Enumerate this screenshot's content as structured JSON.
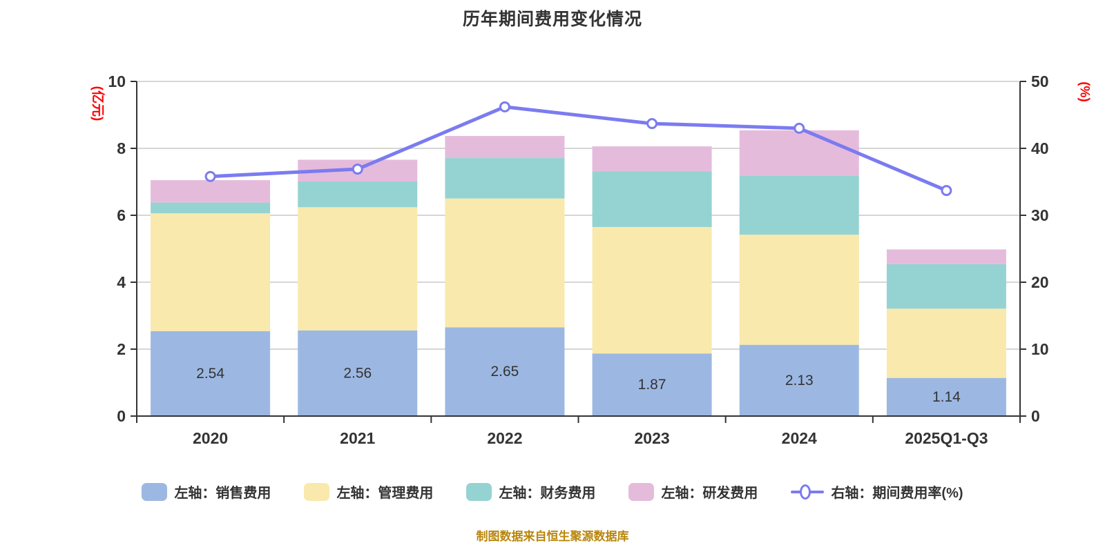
{
  "title": "历年期间费用变化情况",
  "source_note": "制图数据来自恒生聚源数据库",
  "colors": {
    "sales": "#9CB8E2",
    "management": "#F9E9AC",
    "finance": "#95D3D2",
    "rd": "#E5BBDC",
    "line": "#7B7BF0",
    "axis": "#333333",
    "grid": "#D6D6D6",
    "axis_name": "#FF0000",
    "text": "#333333",
    "title": "#333333",
    "source": "#B8860B",
    "marker_fill": "#FFFFFF"
  },
  "chart_data": {
    "type": "bar",
    "stacked": true,
    "grid": true,
    "legend_position": "bottom",
    "title": "历年期间费用变化情况",
    "categories": [
      "2020",
      "2021",
      "2022",
      "2023",
      "2024",
      "2025Q1-Q3"
    ],
    "series": [
      {
        "name": "左轴：销售费用",
        "axis": "left",
        "color_key": "sales",
        "values": [
          2.54,
          2.56,
          2.65,
          1.87,
          2.13,
          1.14
        ]
      },
      {
        "name": "左轴：管理费用",
        "axis": "left",
        "color_key": "management",
        "values": [
          3.52,
          3.68,
          3.85,
          3.78,
          3.29,
          2.07
        ]
      },
      {
        "name": "左轴：财务费用",
        "axis": "left",
        "color_key": "finance",
        "values": [
          0.32,
          0.77,
          1.21,
          1.66,
          1.77,
          1.33
        ]
      },
      {
        "name": "左轴：研发费用",
        "axis": "left",
        "color_key": "rd",
        "values": [
          0.67,
          0.65,
          0.66,
          0.75,
          1.35,
          0.44
        ]
      }
    ],
    "line_series": {
      "name": "右轴：期间费用率(%)",
      "axis": "right",
      "type": "line",
      "color_key": "line",
      "values": [
        35.8,
        36.9,
        46.2,
        43.7,
        43.0,
        33.7
      ]
    },
    "bar_value_labels": [
      "2.54",
      "2.56",
      "2.65",
      "1.87",
      "2.13",
      "1.14"
    ],
    "left_axis": {
      "name": "(亿元)",
      "min": 0,
      "max": 10,
      "ticks": [
        0,
        2,
        4,
        6,
        8,
        10
      ]
    },
    "right_axis": {
      "name": "(%)",
      "min": 0,
      "max": 50,
      "ticks": [
        0,
        10,
        20,
        30,
        40,
        50
      ]
    }
  }
}
